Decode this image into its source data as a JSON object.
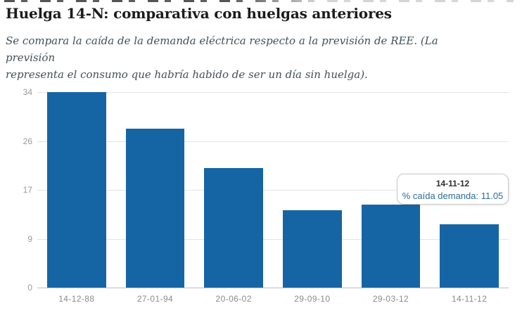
{
  "header": {
    "title": "Huelga 14-N: comparativa con huelgas anteriores",
    "subtitle_line1": "Se compara la caída de la demanda eléctrica respecto a la previsión de REE. (La previsión",
    "subtitle_line2": "representa el consumo que habría habido de ser un día sin huelga)."
  },
  "chart_data": {
    "type": "bar",
    "title": "",
    "xlabel": "",
    "ylabel": "",
    "categories": [
      "14-12-88",
      "27-01-94",
      "20-06-02",
      "29-09-10",
      "29-03-12",
      "14-11-12"
    ],
    "series": [
      {
        "name": "% caída demanda",
        "values": [
          34,
          27.6,
          20.8,
          13.5,
          14.4,
          11.05
        ]
      }
    ],
    "ylim": [
      0,
      34
    ],
    "ytick_values": [
      0,
      8.5,
      17,
      25.5,
      34
    ],
    "ytick_labels": [
      "0",
      "9",
      "17",
      "26",
      "34"
    ],
    "grid": "horizontal gridlines on, no vertical",
    "legend": "none",
    "bar_color": "#1565a5",
    "tooltip": {
      "title": "14-11-12",
      "label": "% caída demanda",
      "value": "11.05",
      "text": "% caída demanda: 11.05"
    }
  }
}
